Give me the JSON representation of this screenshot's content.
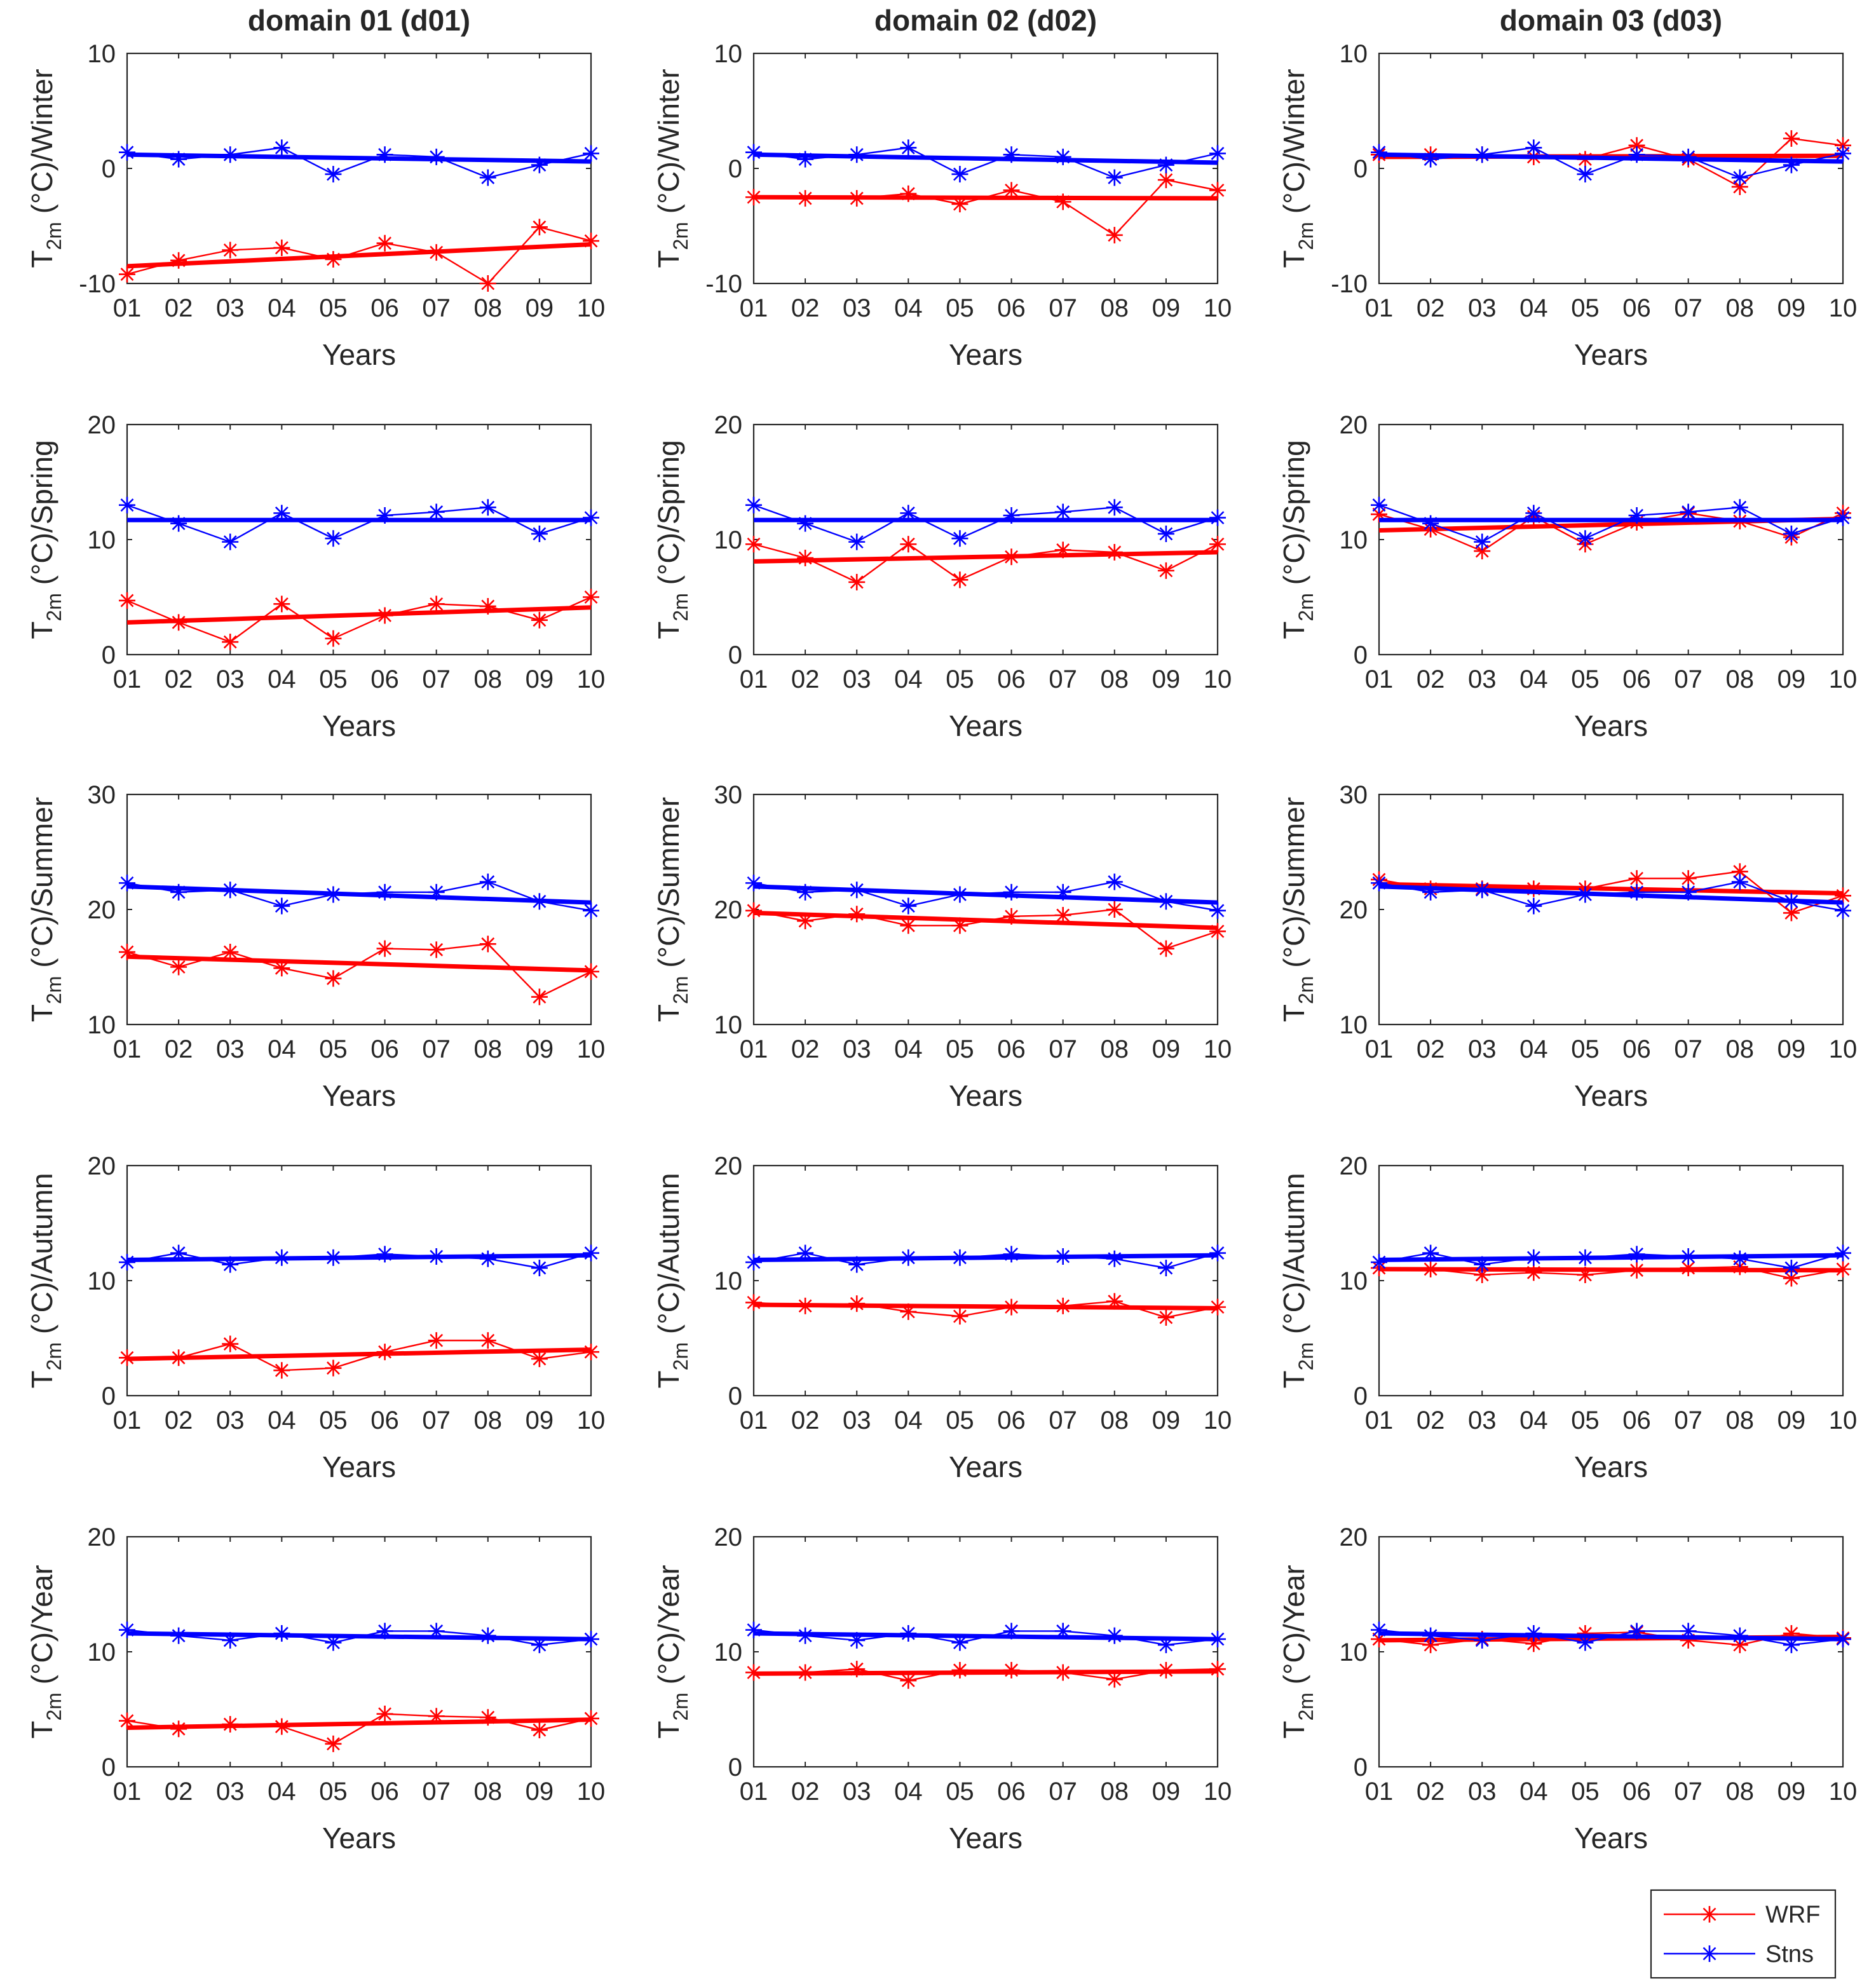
{
  "figure": {
    "column_titles": [
      "domain 01 (d01)",
      "domain 02 (d02)",
      "domain 03 (d03)"
    ],
    "ylabel_parts": {
      "main": "T",
      "sub": "2m",
      "unit": " (°C)/"
    },
    "xlabel": "Years",
    "legend": [
      {
        "label": "WRF",
        "color": "#ff0000"
      },
      {
        "label": "Stns",
        "color": "#0000ff"
      }
    ],
    "colors": {
      "wrf": "#ff0000",
      "stns": "#0000ff",
      "axes": "#262626"
    }
  },
  "chart_data": [
    {
      "type": "line",
      "domain": "domain 01 (d01)",
      "season": "Winter",
      "ylabel": "T2m (°C)/Winter",
      "xlabel": "Years",
      "categories": [
        "01",
        "02",
        "03",
        "04",
        "05",
        "06",
        "07",
        "08",
        "09",
        "10"
      ],
      "ylim": [
        -10,
        10
      ],
      "yticks": [
        -10,
        0,
        10
      ],
      "series": [
        {
          "name": "WRF",
          "values": [
            -9.2,
            -8.0,
            -7.1,
            -6.9,
            -7.9,
            -6.5,
            -7.3,
            -10.0,
            -5.1,
            -6.3
          ],
          "trend": [
            -8.5,
            -6.6
          ]
        },
        {
          "name": "Stns",
          "values": [
            1.4,
            0.8,
            1.2,
            1.8,
            -0.5,
            1.2,
            1.0,
            -0.8,
            0.3,
            1.3
          ],
          "trend": [
            1.2,
            0.6
          ]
        }
      ]
    },
    {
      "type": "line",
      "domain": "domain 02 (d02)",
      "season": "Winter",
      "ylabel": "T2m (°C)/Winter",
      "xlabel": "Years",
      "categories": [
        "01",
        "02",
        "03",
        "04",
        "05",
        "06",
        "07",
        "08",
        "09",
        "10"
      ],
      "ylim": [
        -10,
        10
      ],
      "yticks": [
        -10,
        0,
        10
      ],
      "series": [
        {
          "name": "WRF",
          "values": [
            -2.5,
            -2.6,
            -2.6,
            -2.2,
            -3.1,
            -1.9,
            -2.9,
            -5.8,
            -1.0,
            -1.9
          ],
          "trend": [
            -2.5,
            -2.6
          ]
        },
        {
          "name": "Stns",
          "values": [
            1.4,
            0.8,
            1.2,
            1.8,
            -0.5,
            1.2,
            1.0,
            -0.8,
            0.3,
            1.3
          ],
          "trend": [
            1.2,
            0.5
          ]
        }
      ]
    },
    {
      "type": "line",
      "domain": "domain 03 (d03)",
      "season": "Winter",
      "ylabel": "T2m (°C)/Winter",
      "xlabel": "Years",
      "categories": [
        "01",
        "02",
        "03",
        "04",
        "05",
        "06",
        "07",
        "08",
        "09",
        "10"
      ],
      "ylim": [
        -10,
        10
      ],
      "yticks": [
        -10,
        0,
        10
      ],
      "series": [
        {
          "name": "WRF",
          "values": [
            1.2,
            1.2,
            1.2,
            1.0,
            0.8,
            2.0,
            0.8,
            -1.6,
            2.6,
            2.0
          ],
          "trend": [
            1.0,
            1.1
          ]
        },
        {
          "name": "Stns",
          "values": [
            1.4,
            0.8,
            1.2,
            1.8,
            -0.5,
            1.2,
            1.0,
            -0.8,
            0.3,
            1.3
          ],
          "trend": [
            1.2,
            0.6
          ]
        }
      ]
    },
    {
      "type": "line",
      "domain": "domain 01 (d01)",
      "season": "Spring",
      "ylabel": "T2m (°C)/Spring",
      "xlabel": "Years",
      "categories": [
        "01",
        "02",
        "03",
        "04",
        "05",
        "06",
        "07",
        "08",
        "09",
        "10"
      ],
      "ylim": [
        0,
        20
      ],
      "yticks": [
        0,
        10,
        20
      ],
      "series": [
        {
          "name": "WRF",
          "values": [
            4.7,
            2.8,
            1.1,
            4.4,
            1.4,
            3.4,
            4.4,
            4.2,
            3.0,
            5.0
          ],
          "trend": [
            2.8,
            4.1
          ]
        },
        {
          "name": "Stns",
          "values": [
            13.0,
            11.4,
            9.8,
            12.3,
            10.1,
            12.1,
            12.4,
            12.8,
            10.5,
            11.9
          ],
          "trend": [
            11.7,
            11.7
          ]
        }
      ]
    },
    {
      "type": "line",
      "domain": "domain 02 (d02)",
      "season": "Spring",
      "ylabel": "T2m (°C)/Spring",
      "xlabel": "Years",
      "categories": [
        "01",
        "02",
        "03",
        "04",
        "05",
        "06",
        "07",
        "08",
        "09",
        "10"
      ],
      "ylim": [
        0,
        20
      ],
      "yticks": [
        0,
        10,
        20
      ],
      "series": [
        {
          "name": "WRF",
          "values": [
            9.6,
            8.4,
            6.3,
            9.6,
            6.5,
            8.5,
            9.1,
            8.9,
            7.3,
            9.6
          ],
          "trend": [
            8.1,
            8.9
          ]
        },
        {
          "name": "Stns",
          "values": [
            13.0,
            11.4,
            9.8,
            12.3,
            10.1,
            12.1,
            12.4,
            12.8,
            10.5,
            11.9
          ],
          "trend": [
            11.7,
            11.7
          ]
        }
      ]
    },
    {
      "type": "line",
      "domain": "domain 03 (d03)",
      "season": "Spring",
      "ylabel": "T2m (°C)/Spring",
      "xlabel": "Years",
      "categories": [
        "01",
        "02",
        "03",
        "04",
        "05",
        "06",
        "07",
        "08",
        "09",
        "10"
      ],
      "ylim": [
        0,
        20
      ],
      "yticks": [
        0,
        10,
        20
      ],
      "series": [
        {
          "name": "WRF",
          "values": [
            12.2,
            10.9,
            9.0,
            12.0,
            9.6,
            11.5,
            12.3,
            11.6,
            10.2,
            12.3
          ],
          "trend": [
            10.8,
            11.8
          ]
        },
        {
          "name": "Stns",
          "values": [
            13.0,
            11.4,
            9.8,
            12.3,
            10.1,
            12.1,
            12.4,
            12.8,
            10.5,
            11.9
          ],
          "trend": [
            11.7,
            11.7
          ]
        }
      ]
    },
    {
      "type": "line",
      "domain": "domain 01 (d01)",
      "season": "Summer",
      "ylabel": "T2m (°C)/Summer",
      "xlabel": "Years",
      "categories": [
        "01",
        "02",
        "03",
        "04",
        "05",
        "06",
        "07",
        "08",
        "09",
        "10"
      ],
      "ylim": [
        10,
        30
      ],
      "yticks": [
        10,
        20,
        30
      ],
      "series": [
        {
          "name": "WRF",
          "values": [
            16.3,
            15.0,
            16.3,
            14.9,
            14.0,
            16.6,
            16.5,
            17.0,
            12.4,
            14.6
          ],
          "trend": [
            15.9,
            14.7
          ]
        },
        {
          "name": "Stns",
          "values": [
            22.3,
            21.5,
            21.7,
            20.3,
            21.3,
            21.5,
            21.5,
            22.4,
            20.7,
            19.9
          ],
          "trend": [
            22.0,
            20.6
          ]
        }
      ]
    },
    {
      "type": "line",
      "domain": "domain 02 (d02)",
      "season": "Summer",
      "ylabel": "T2m (°C)/Summer",
      "xlabel": "Years",
      "categories": [
        "01",
        "02",
        "03",
        "04",
        "05",
        "06",
        "07",
        "08",
        "09",
        "10"
      ],
      "ylim": [
        10,
        30
      ],
      "yticks": [
        10,
        20,
        30
      ],
      "series": [
        {
          "name": "WRF",
          "values": [
            19.9,
            19.0,
            19.6,
            18.6,
            18.6,
            19.4,
            19.5,
            20.0,
            16.6,
            18.1
          ],
          "trend": [
            19.7,
            18.4
          ]
        },
        {
          "name": "Stns",
          "values": [
            22.3,
            21.5,
            21.7,
            20.3,
            21.3,
            21.5,
            21.5,
            22.4,
            20.7,
            19.9
          ],
          "trend": [
            22.0,
            20.6
          ]
        }
      ]
    },
    {
      "type": "line",
      "domain": "domain 03 (d03)",
      "season": "Summer",
      "ylabel": "T2m (°C)/Summer",
      "xlabel": "Years",
      "categories": [
        "01",
        "02",
        "03",
        "04",
        "05",
        "06",
        "07",
        "08",
        "09",
        "10"
      ],
      "ylim": [
        10,
        30
      ],
      "yticks": [
        10,
        20,
        30
      ],
      "series": [
        {
          "name": "WRF",
          "values": [
            22.6,
            21.8,
            21.8,
            21.8,
            21.8,
            22.7,
            22.7,
            23.3,
            19.7,
            21.2
          ],
          "trend": [
            22.2,
            21.4
          ]
        },
        {
          "name": "Stns",
          "values": [
            22.3,
            21.5,
            21.7,
            20.3,
            21.3,
            21.5,
            21.5,
            22.4,
            20.7,
            19.9
          ],
          "trend": [
            22.0,
            20.6
          ]
        }
      ]
    },
    {
      "type": "line",
      "domain": "domain 01 (d01)",
      "season": "Autumn",
      "ylabel": "T2m (°C)/Autumn",
      "xlabel": "Years",
      "categories": [
        "01",
        "02",
        "03",
        "04",
        "05",
        "06",
        "07",
        "08",
        "09",
        "10"
      ],
      "ylim": [
        0,
        20
      ],
      "yticks": [
        0,
        10,
        20
      ],
      "series": [
        {
          "name": "WRF",
          "values": [
            3.3,
            3.3,
            4.5,
            2.2,
            2.4,
            3.8,
            4.8,
            4.8,
            3.2,
            3.8
          ],
          "trend": [
            3.2,
            4.0
          ]
        },
        {
          "name": "Stns",
          "values": [
            11.6,
            12.4,
            11.4,
            12.0,
            12.0,
            12.3,
            12.1,
            11.9,
            11.1,
            12.4
          ],
          "trend": [
            11.8,
            12.2
          ]
        }
      ]
    },
    {
      "type": "line",
      "domain": "domain 02 (d02)",
      "season": "Autumn",
      "ylabel": "T2m (°C)/Autumn",
      "xlabel": "Years",
      "categories": [
        "01",
        "02",
        "03",
        "04",
        "05",
        "06",
        "07",
        "08",
        "09",
        "10"
      ],
      "ylim": [
        0,
        20
      ],
      "yticks": [
        0,
        10,
        20
      ],
      "series": [
        {
          "name": "WRF",
          "values": [
            8.1,
            7.8,
            8.0,
            7.3,
            6.9,
            7.7,
            7.8,
            8.2,
            6.8,
            7.7
          ],
          "trend": [
            7.9,
            7.6
          ]
        },
        {
          "name": "Stns",
          "values": [
            11.6,
            12.4,
            11.4,
            12.0,
            12.0,
            12.3,
            12.1,
            11.9,
            11.1,
            12.4
          ],
          "trend": [
            11.8,
            12.2
          ]
        }
      ]
    },
    {
      "type": "line",
      "domain": "domain 03 (d03)",
      "season": "Autumn",
      "ylabel": "T2m (°C)/Autumn",
      "xlabel": "Years",
      "categories": [
        "01",
        "02",
        "03",
        "04",
        "05",
        "06",
        "07",
        "08",
        "09",
        "10"
      ],
      "ylim": [
        0,
        20
      ],
      "yticks": [
        0,
        10,
        20
      ],
      "series": [
        {
          "name": "WRF",
          "values": [
            11.1,
            11.0,
            10.5,
            10.7,
            10.5,
            10.9,
            11.1,
            11.2,
            10.2,
            11.0
          ],
          "trend": [
            11.0,
            10.9
          ]
        },
        {
          "name": "Stns",
          "values": [
            11.6,
            12.4,
            11.4,
            12.0,
            12.0,
            12.3,
            12.1,
            11.9,
            11.1,
            12.4
          ],
          "trend": [
            11.8,
            12.2
          ]
        }
      ]
    },
    {
      "type": "line",
      "domain": "domain 01 (d01)",
      "season": "Year",
      "ylabel": "T2m (°C)/Year",
      "xlabel": "Years",
      "categories": [
        "01",
        "02",
        "03",
        "04",
        "05",
        "06",
        "07",
        "08",
        "09",
        "10"
      ],
      "ylim": [
        0,
        20
      ],
      "yticks": [
        0,
        10,
        20
      ],
      "series": [
        {
          "name": "WRF",
          "values": [
            4.0,
            3.3,
            3.7,
            3.5,
            2.0,
            4.6,
            4.4,
            4.3,
            3.2,
            4.2
          ],
          "trend": [
            3.4,
            4.1
          ]
        },
        {
          "name": "Stns",
          "values": [
            11.9,
            11.4,
            11.0,
            11.6,
            10.8,
            11.8,
            11.8,
            11.4,
            10.6,
            11.1
          ],
          "trend": [
            11.6,
            11.1
          ]
        }
      ]
    },
    {
      "type": "line",
      "domain": "domain 02 (d02)",
      "season": "Year",
      "ylabel": "T2m (°C)/Year",
      "xlabel": "Years",
      "categories": [
        "01",
        "02",
        "03",
        "04",
        "05",
        "06",
        "07",
        "08",
        "09",
        "10"
      ],
      "ylim": [
        0,
        20
      ],
      "yticks": [
        0,
        10,
        20
      ],
      "series": [
        {
          "name": "WRF",
          "values": [
            8.2,
            8.2,
            8.5,
            7.5,
            8.4,
            8.4,
            8.2,
            7.6,
            8.4,
            8.5
          ],
          "trend": [
            8.1,
            8.3
          ]
        },
        {
          "name": "Stns",
          "values": [
            11.9,
            11.4,
            11.0,
            11.6,
            10.8,
            11.8,
            11.8,
            11.4,
            10.6,
            11.1
          ],
          "trend": [
            11.6,
            11.1
          ]
        }
      ]
    },
    {
      "type": "line",
      "domain": "domain 03 (d03)",
      "season": "Year",
      "ylabel": "T2m (°C)/Year",
      "xlabel": "Years",
      "categories": [
        "01",
        "02",
        "03",
        "04",
        "05",
        "06",
        "07",
        "08",
        "09",
        "10"
      ],
      "ylim": [
        0,
        20
      ],
      "yticks": [
        0,
        10,
        20
      ],
      "series": [
        {
          "name": "WRF",
          "values": [
            11.1,
            10.6,
            11.1,
            10.7,
            11.6,
            11.7,
            11.0,
            10.6,
            11.6,
            11.2
          ],
          "trend": [
            11.0,
            11.3
          ]
        },
        {
          "name": "Stns",
          "values": [
            11.9,
            11.4,
            11.0,
            11.6,
            10.8,
            11.8,
            11.8,
            11.4,
            10.6,
            11.1
          ],
          "trend": [
            11.6,
            11.1
          ]
        }
      ]
    }
  ]
}
